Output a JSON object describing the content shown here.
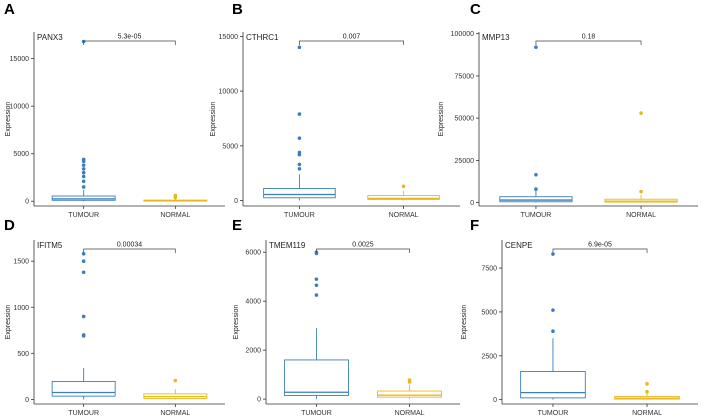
{
  "chart_data": [
    {
      "type": "boxplot",
      "panel": "A",
      "title": "PANX3",
      "ylabel": "Expression",
      "categories": [
        "TUMOUR",
        "NORMAL"
      ],
      "yticks": [
        0,
        5000,
        10000,
        15000
      ],
      "ylim": [
        -500,
        17800
      ],
      "p_value": "5.3e-05",
      "groups": [
        {
          "name": "TUMOUR",
          "color": "#3a7ebf",
          "q1": 100,
          "median": 250,
          "q3": 550,
          "whisker_low": 0,
          "whisker_high": 1200,
          "outliers": [
            1500,
            2100,
            2600,
            3000,
            3400,
            3800,
            4200,
            4400,
            16800
          ]
        },
        {
          "name": "NORMAL",
          "color": "#e8b820",
          "q1": 20,
          "median": 60,
          "q3": 120,
          "whisker_low": 0,
          "whisker_high": 250,
          "outliers": [
            400,
            600
          ]
        }
      ]
    },
    {
      "type": "boxplot",
      "panel": "B",
      "title": "CTHRC1",
      "ylabel": "Expression",
      "categories": [
        "TUMOUR",
        "NORMAL"
      ],
      "yticks": [
        0,
        5000,
        10000,
        15000
      ],
      "ylim": [
        -500,
        15400
      ],
      "p_value": "0.007",
      "groups": [
        {
          "name": "TUMOUR",
          "color": "#3a7ebf",
          "q1": 250,
          "median": 550,
          "q3": 1100,
          "whisker_low": 0,
          "whisker_high": 2400,
          "outliers": [
            2900,
            3300,
            4200,
            4400,
            5700,
            7900,
            14000
          ]
        },
        {
          "name": "NORMAL",
          "color": "#e8b820",
          "q1": 100,
          "median": 200,
          "q3": 450,
          "whisker_low": 0,
          "whisker_high": 900,
          "outliers": [
            1300
          ]
        }
      ]
    },
    {
      "type": "boxplot",
      "panel": "C",
      "title": "MMP13",
      "ylabel": "Expression",
      "categories": [
        "TUMOUR",
        "NORMAL"
      ],
      "yticks": [
        0,
        25000,
        50000,
        75000,
        100000
      ],
      "ylim": [
        -2000,
        101000
      ],
      "p_value": "0.18",
      "groups": [
        {
          "name": "TUMOUR",
          "color": "#3a7ebf",
          "q1": 500,
          "median": 1500,
          "q3": 3500,
          "whisker_low": 0,
          "whisker_high": 7000,
          "outliers": [
            8000,
            16500,
            92000
          ]
        },
        {
          "name": "NORMAL",
          "color": "#e8b820",
          "q1": 300,
          "median": 900,
          "q3": 2000,
          "whisker_low": 0,
          "whisker_high": 4500,
          "outliers": [
            6500,
            53000
          ]
        }
      ]
    },
    {
      "type": "boxplot",
      "panel": "D",
      "title": "IFITM5",
      "ylabel": "Expression",
      "categories": [
        "TUMOUR",
        "NORMAL"
      ],
      "yticks": [
        0,
        500,
        1000,
        1500
      ],
      "ylim": [
        -50,
        1730
      ],
      "p_value": "0.00034",
      "groups": [
        {
          "name": "TUMOUR",
          "color": "#3a7ebf",
          "q1": 35,
          "median": 75,
          "q3": 195,
          "whisker_low": 0,
          "whisker_high": 340,
          "outliers": [
            690,
            700,
            900,
            1380,
            1500,
            1580
          ]
        },
        {
          "name": "NORMAL",
          "color": "#e8b820",
          "q1": 10,
          "median": 30,
          "q3": 60,
          "whisker_low": 0,
          "whisker_high": 110,
          "outliers": [
            205
          ]
        }
      ]
    },
    {
      "type": "boxplot",
      "panel": "E",
      "title": "TMEM119",
      "ylabel": "Expression",
      "categories": [
        "TUMOUR",
        "NORMAL"
      ],
      "yticks": [
        0,
        2000,
        4000,
        6000
      ],
      "ylim": [
        -200,
        6500
      ],
      "p_value": "0.0025",
      "groups": [
        {
          "name": "TUMOUR",
          "color": "#3a7ebf",
          "q1": 150,
          "median": 280,
          "q3": 1600,
          "whisker_low": 0,
          "whisker_high": 2900,
          "outliers": [
            4250,
            4650,
            4900,
            5950,
            6000
          ]
        },
        {
          "name": "NORMAL",
          "color": "#e8b820",
          "q1": 80,
          "median": 160,
          "q3": 330,
          "whisker_low": 0,
          "whisker_high": 600,
          "outliers": [
            700,
            780
          ]
        }
      ]
    },
    {
      "type": "boxplot",
      "panel": "F",
      "title": "CENPE",
      "ylabel": "Expression",
      "categories": [
        "TUMOUR",
        "NORMAL"
      ],
      "yticks": [
        0,
        2500,
        5000,
        7500
      ],
      "ylim": [
        -250,
        9100
      ],
      "p_value": "6.9e-05",
      "groups": [
        {
          "name": "TUMOUR",
          "color": "#3a7ebf",
          "q1": 100,
          "median": 400,
          "q3": 1600,
          "whisker_low": 0,
          "whisker_high": 3500,
          "outliers": [
            3900,
            5100,
            8300
          ]
        },
        {
          "name": "NORMAL",
          "color": "#e8b820",
          "q1": 30,
          "median": 80,
          "q3": 180,
          "whisker_low": 0,
          "whisker_high": 350,
          "outliers": [
            450,
            900
          ]
        }
      ]
    }
  ]
}
